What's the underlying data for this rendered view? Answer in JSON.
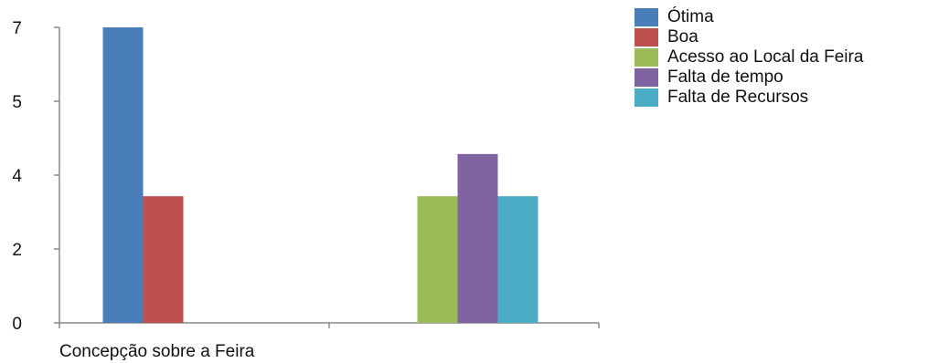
{
  "chart_data": {
    "type": "bar",
    "categories": [
      "Concepção sobre a Feira",
      ""
    ],
    "series": [
      {
        "name": "Ótima",
        "color": "#4a7ebb",
        "values": [
          7,
          0
        ]
      },
      {
        "name": "Boa",
        "color": "#c0504d",
        "values": [
          3,
          0
        ]
      },
      {
        "name": "Acesso ao Local da Feira",
        "color": "#9bbb59",
        "values": [
          0,
          3
        ]
      },
      {
        "name": "Falta de tempo",
        "color": "#8064a2",
        "values": [
          0,
          4
        ]
      },
      {
        "name": "Falta de Recursos",
        "color": "#4bacc6",
        "values": [
          0,
          3
        ]
      }
    ],
    "y_tick_labels": [
      {
        "value": 0,
        "label": "0"
      },
      {
        "value": 1.75,
        "label": "2"
      },
      {
        "value": 3.5,
        "label": "4"
      },
      {
        "value": 5.25,
        "label": "5"
      },
      {
        "value": 7,
        "label": "7"
      }
    ],
    "ylim": [
      0,
      7
    ],
    "legend_position": "right",
    "grid": false,
    "title": "",
    "xlabel": "",
    "ylabel": ""
  }
}
